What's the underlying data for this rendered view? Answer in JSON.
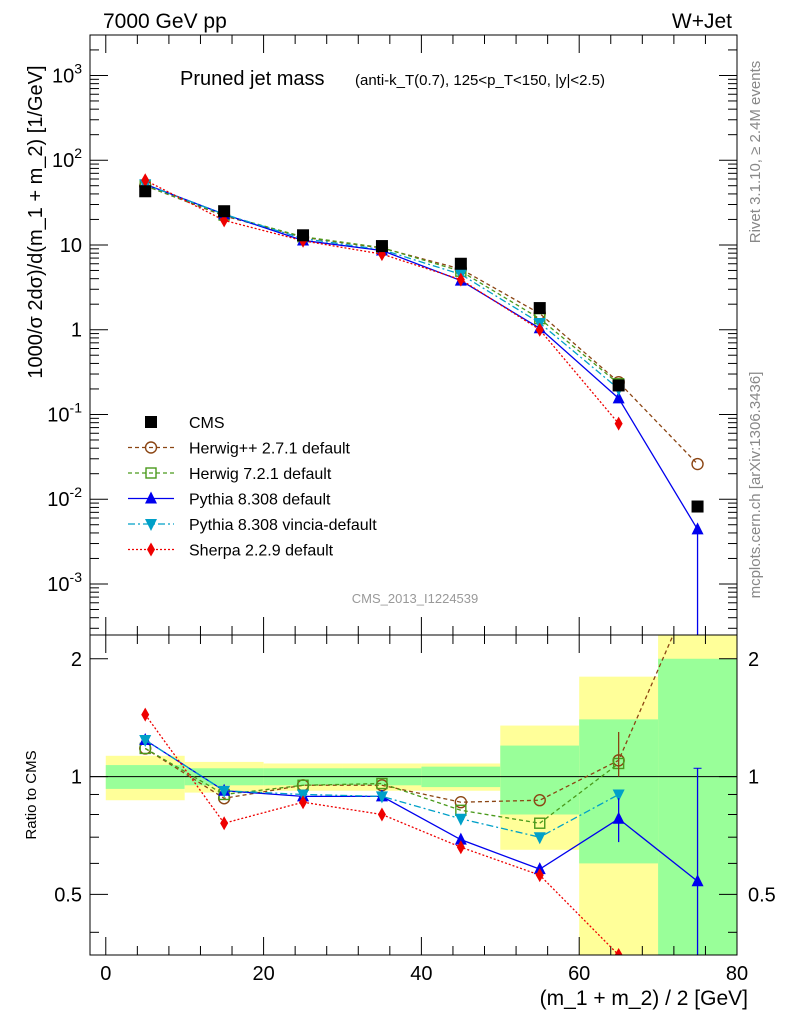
{
  "header": {
    "left": "7000 GeV pp",
    "right": "W+Jet"
  },
  "side": {
    "rivet": "Rivet 3.1.10, ≥ 2.4M events",
    "mcplots": "mcplots.cern.ch [arXiv:1306.3436]"
  },
  "colors": {
    "CMS": "#000000",
    "Herwig++ 2.7.1 default": "#8b4513",
    "Herwig 7.2.1 default": "#4a9a1c",
    "Pythia 8.308 default": "#0000ee",
    "Pythia 8.308 vincia-default": "#00a0c8",
    "Sherpa 2.2.9 default": "#ee0000",
    "band_inner": "#99ff99",
    "band_outer": "#ffff99"
  },
  "chart_data": {
    "type": "line",
    "title": "Pruned jet mass",
    "subtitle": "(anti-k_T(0.7), 125<p_T<150, |y|<2.5)",
    "analysis": "CMS_2013_I1224539",
    "xlabel": "(m_1 + m_2) / 2 [GeV]",
    "ylabel": "1000/σ 2dσ)/d(m_1 + m_2) [1/GeV]",
    "ratio_ylabel": "Ratio to CMS",
    "xlim": [
      -2,
      80
    ],
    "ylim": [
      0.00025,
      3000
    ],
    "ratio_ylim": [
      0.35,
      2.3
    ],
    "x_ticks": [
      0,
      20,
      40,
      60,
      80
    ],
    "y_tick_labels": [
      "10^{-3}",
      "10^{-2}",
      "10^{-1}",
      "1",
      "10",
      "10^{2}",
      "10^{3}"
    ],
    "ratio_tick_labels": [
      "0.5",
      "1",
      "2"
    ],
    "bin_edges": [
      0,
      10,
      20,
      30,
      40,
      50,
      60,
      70,
      80
    ],
    "x": [
      5,
      15,
      25,
      35,
      45,
      55,
      65,
      75
    ],
    "data": {
      "name": "CMS",
      "values": [
        43,
        25,
        13,
        9.7,
        6.0,
        1.8,
        0.22,
        0.0082
      ],
      "rel_err_inner": [
        0.07,
        0.05,
        0.05,
        0.05,
        0.06,
        0.2,
        0.4,
        1.0
      ],
      "rel_err_outer": [
        0.13,
        0.09,
        0.08,
        0.08,
        0.08,
        0.35,
        0.8,
        2.2
      ]
    },
    "legend": [
      "CMS",
      "Herwig++ 2.7.1 default",
      "Herwig 7.2.1 default",
      "Pythia 8.308 default",
      "Pythia 8.308 vincia-default",
      "Sherpa 2.2.9 default"
    ],
    "series": [
      {
        "name": "Herwig++ 2.7.1 default",
        "marker": "circle-open",
        "dash": "4,3",
        "values": [
          50,
          22,
          12.3,
          9.2,
          5.2,
          1.55,
          0.24,
          0.026
        ],
        "ratio": [
          1.18,
          0.88,
          0.95,
          0.95,
          0.86,
          0.87,
          1.1,
          3.2
        ]
      },
      {
        "name": "Herwig 7.2.1 default",
        "marker": "square-open",
        "dash": "4,3",
        "values": [
          50,
          22.5,
          12.5,
          9.3,
          4.9,
          1.35,
          0.23,
          null
        ],
        "ratio": [
          1.18,
          0.9,
          0.95,
          0.96,
          0.82,
          0.76,
          1.08,
          null
        ]
      },
      {
        "name": "Pythia 8.308 default",
        "marker": "triangle-up",
        "dash": "",
        "values": [
          52,
          23,
          11.3,
          8.6,
          3.8,
          1.04,
          0.155,
          0.0044
        ],
        "ratio": [
          1.24,
          0.92,
          0.89,
          0.89,
          0.69,
          0.58,
          0.78,
          0.54
        ]
      },
      {
        "name": "Pythia 8.308 vincia-default",
        "marker": "triangle-down",
        "dash": "7,3,2,3",
        "values": [
          52,
          23,
          11.9,
          8.8,
          4.5,
          1.2,
          0.2,
          null
        ],
        "ratio": [
          1.24,
          0.92,
          0.9,
          0.89,
          0.78,
          0.7,
          0.9,
          null
        ]
      },
      {
        "name": "Sherpa 2.2.9 default",
        "marker": "diamond",
        "dash": "2,2",
        "values": [
          58,
          19.5,
          11.2,
          7.8,
          3.9,
          1.0,
          0.078,
          null
        ],
        "ratio": [
          1.44,
          0.76,
          0.86,
          0.8,
          0.66,
          0.56,
          0.35,
          null
        ]
      }
    ]
  }
}
